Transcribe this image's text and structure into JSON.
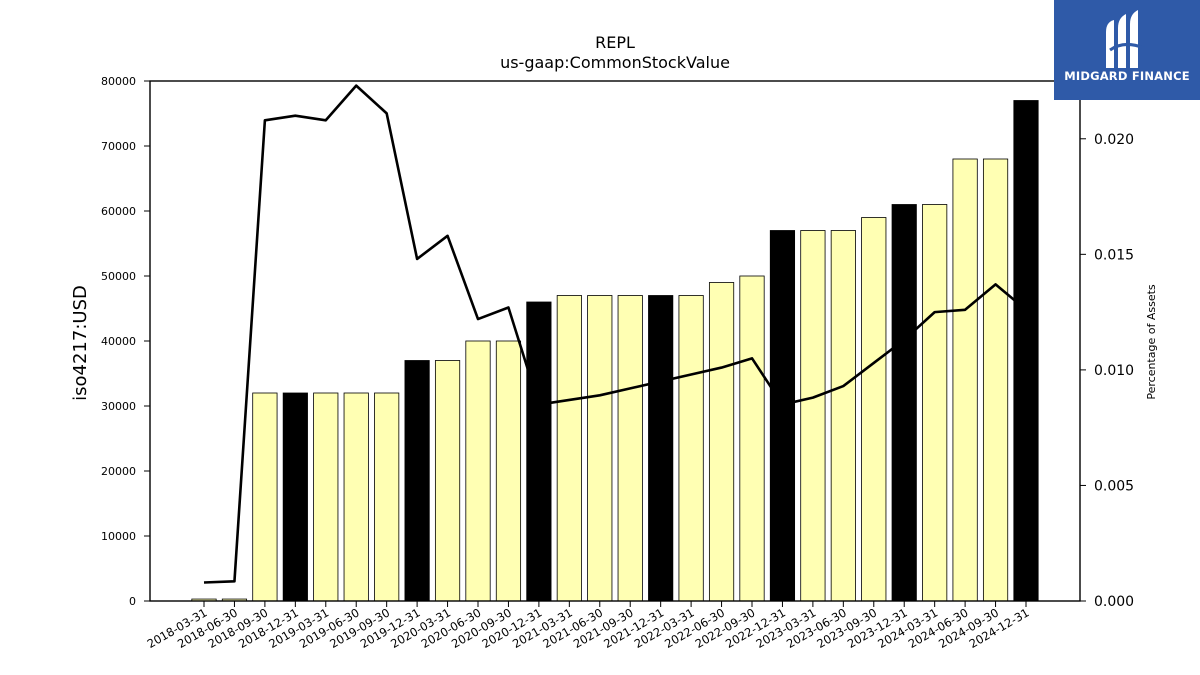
{
  "logo": {
    "text": "MIDGARD FINANCE",
    "background": "#2f5aa8"
  },
  "chart_data": {
    "type": "bar",
    "title": "REPL",
    "subtitle": "us-gaap:CommonStockValue",
    "ylabel": "iso4217:USD",
    "y2label": "Percentage of Assets",
    "ylim": [
      0,
      80000
    ],
    "y2lim": [
      0,
      0.0225
    ],
    "yticks": [
      0,
      10000,
      20000,
      30000,
      40000,
      50000,
      60000,
      70000,
      80000
    ],
    "y2ticks": [
      "0.000",
      "0.005",
      "0.010",
      "0.015",
      "0.020"
    ],
    "grid": false,
    "categories": [
      "2018-03-31",
      "2018-06-30",
      "2018-09-30",
      "2018-12-31",
      "2019-03-31",
      "2019-06-30",
      "2019-09-30",
      "2019-12-31",
      "2020-03-31",
      "2020-06-30",
      "2020-09-30",
      "2020-12-31",
      "2021-03-31",
      "2021-06-30",
      "2021-09-30",
      "2021-12-31",
      "2022-03-31",
      "2022-06-30",
      "2022-09-30",
      "2022-12-31",
      "2023-03-31",
      "2023-06-30",
      "2023-09-30",
      "2023-12-31",
      "2024-03-31",
      "2024-06-30",
      "2024-09-30",
      "2024-12-31"
    ],
    "values": [
      300,
      300,
      32000,
      32000,
      32000,
      32000,
      32000,
      37000,
      37000,
      40000,
      40000,
      46000,
      47000,
      47000,
      47000,
      47000,
      47000,
      49000,
      50000,
      57000,
      57000,
      57000,
      59000,
      61000,
      61000,
      68000,
      68000,
      77000
    ],
    "highlight": [
      false,
      false,
      false,
      true,
      false,
      false,
      false,
      true,
      false,
      false,
      false,
      true,
      false,
      false,
      false,
      true,
      false,
      false,
      false,
      true,
      false,
      false,
      false,
      true,
      false,
      false,
      false,
      true
    ],
    "pct_assets": [
      0.0008,
      0.00085,
      0.0208,
      0.021,
      0.0208,
      0.0223,
      0.0211,
      0.0148,
      0.0158,
      0.0122,
      0.0127,
      0.0085,
      0.0087,
      0.0089,
      0.0092,
      0.0095,
      0.0098,
      0.0101,
      0.0105,
      0.0085,
      0.0088,
      0.0093,
      0.0103,
      0.0113,
      0.0125,
      0.0126,
      0.0137,
      0.0126
    ],
    "colors": {
      "bar": "#ffffb3",
      "bar_highlight": "#000000",
      "line": "#000000"
    }
  }
}
